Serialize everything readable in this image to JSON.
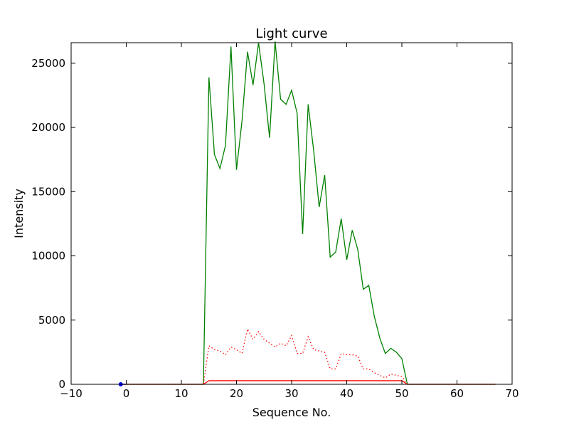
{
  "chart_data": {
    "type": "line",
    "title": "Light curve",
    "xlabel": "Sequence No.",
    "ylabel": "Intensity",
    "xlim": [
      -10,
      70
    ],
    "ylim": [
      0,
      26600
    ],
    "xticks": [
      -10,
      0,
      10,
      20,
      30,
      40,
      50,
      60,
      70
    ],
    "xtick_labels": [
      "−10",
      "0",
      "10",
      "20",
      "30",
      "40",
      "50",
      "60",
      "70"
    ],
    "yticks": [
      0,
      5000,
      10000,
      15000,
      20000,
      25000
    ],
    "ytick_labels": [
      "0",
      "5000",
      "10000",
      "15000",
      "20000",
      "25000"
    ],
    "grid": false,
    "series": [
      {
        "color": "#008000",
        "style": "solid",
        "points": [
          [
            -1,
            0
          ],
          [
            0,
            0
          ],
          [
            14,
            0
          ],
          [
            15,
            23900
          ],
          [
            16,
            17900
          ],
          [
            17,
            16800
          ],
          [
            18,
            18600
          ],
          [
            19,
            26300
          ],
          [
            20,
            16700
          ],
          [
            21,
            20500
          ],
          [
            22,
            25900
          ],
          [
            23,
            23300
          ],
          [
            24,
            26600
          ],
          [
            25,
            23400
          ],
          [
            26,
            19200
          ],
          [
            27,
            26700
          ],
          [
            28,
            22200
          ],
          [
            29,
            21800
          ],
          [
            30,
            22900
          ],
          [
            31,
            21100
          ],
          [
            32,
            11700
          ],
          [
            33,
            21800
          ],
          [
            34,
            18200
          ],
          [
            35,
            13800
          ],
          [
            36,
            16300
          ],
          [
            37,
            9900
          ],
          [
            38,
            10300
          ],
          [
            39,
            12900
          ],
          [
            40,
            9700
          ],
          [
            41,
            12000
          ],
          [
            42,
            10500
          ],
          [
            43,
            7400
          ],
          [
            44,
            7700
          ],
          [
            45,
            5300
          ],
          [
            46,
            3600
          ],
          [
            47,
            2400
          ],
          [
            48,
            2800
          ],
          [
            49,
            2500
          ],
          [
            50,
            2000
          ],
          [
            51,
            0
          ],
          [
            67,
            0
          ]
        ]
      },
      {
        "color": "#ff0000",
        "style": "dotted",
        "points": [
          [
            -1,
            0
          ],
          [
            0,
            0
          ],
          [
            14,
            0
          ],
          [
            15,
            3000
          ],
          [
            16,
            2700
          ],
          [
            17,
            2600
          ],
          [
            18,
            2300
          ],
          [
            19,
            2900
          ],
          [
            20,
            2700
          ],
          [
            21,
            2400
          ],
          [
            22,
            4300
          ],
          [
            23,
            3500
          ],
          [
            24,
            4100
          ],
          [
            25,
            3500
          ],
          [
            26,
            3200
          ],
          [
            27,
            2900
          ],
          [
            28,
            3200
          ],
          [
            29,
            3000
          ],
          [
            30,
            3800
          ],
          [
            31,
            2400
          ],
          [
            32,
            2400
          ],
          [
            33,
            3700
          ],
          [
            34,
            2700
          ],
          [
            35,
            2600
          ],
          [
            36,
            2500
          ],
          [
            37,
            1200
          ],
          [
            38,
            1200
          ],
          [
            39,
            2400
          ],
          [
            40,
            2300
          ],
          [
            41,
            2300
          ],
          [
            42,
            2200
          ],
          [
            43,
            1200
          ],
          [
            44,
            1200
          ],
          [
            45,
            900
          ],
          [
            46,
            700
          ],
          [
            47,
            500
          ],
          [
            48,
            800
          ],
          [
            49,
            700
          ],
          [
            50,
            600
          ],
          [
            51,
            0
          ],
          [
            67,
            0
          ]
        ]
      },
      {
        "color": "#ff0000",
        "style": "solid",
        "points": [
          [
            -1,
            0
          ],
          [
            0,
            0
          ],
          [
            14,
            0
          ],
          [
            15,
            280
          ],
          [
            50,
            280
          ],
          [
            51,
            0
          ],
          [
            67,
            0
          ]
        ]
      },
      {
        "color": "#0000ff",
        "style": "solid",
        "points": [
          [
            -1,
            0
          ],
          [
            0,
            0
          ]
        ]
      }
    ],
    "markers": [
      {
        "x": -1,
        "y": 0,
        "color": "#0000ff"
      }
    ]
  }
}
